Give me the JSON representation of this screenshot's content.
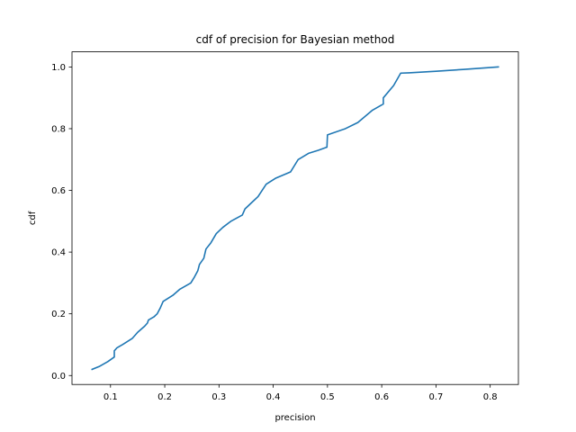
{
  "chart_data": {
    "type": "line",
    "title": "cdf of precision for Bayesian method",
    "xlabel": "precision",
    "ylabel": "cdf",
    "xlim": [
      0.029,
      0.852
    ],
    "ylim": [
      -0.029,
      1.049
    ],
    "xticks": [
      "0.1",
      "0.2",
      "0.3",
      "0.4",
      "0.5",
      "0.6",
      "0.7",
      "0.8"
    ],
    "yticks": [
      "0.0",
      "0.2",
      "0.4",
      "0.6",
      "0.8",
      "1.0"
    ],
    "grid": false,
    "series": [
      {
        "color": "#1f77b4",
        "x": [
          0.066,
          0.08,
          0.095,
          0.107,
          0.107,
          0.112,
          0.122,
          0.14,
          0.15,
          0.163,
          0.168,
          0.17,
          0.18,
          0.186,
          0.192,
          0.197,
          0.215,
          0.228,
          0.248,
          0.255,
          0.261,
          0.264,
          0.272,
          0.276,
          0.285,
          0.295,
          0.307,
          0.322,
          0.343,
          0.348,
          0.36,
          0.372,
          0.387,
          0.405,
          0.432,
          0.446,
          0.465,
          0.483,
          0.499,
          0.5,
          0.533,
          0.556,
          0.583,
          0.603,
          0.603,
          0.622,
          0.635,
          0.65,
          0.7,
          0.75,
          0.815
        ],
        "y": [
          0.02,
          0.03,
          0.045,
          0.06,
          0.08,
          0.09,
          0.1,
          0.12,
          0.14,
          0.16,
          0.17,
          0.18,
          0.19,
          0.2,
          0.22,
          0.24,
          0.26,
          0.28,
          0.3,
          0.32,
          0.34,
          0.36,
          0.38,
          0.41,
          0.43,
          0.46,
          0.48,
          0.5,
          0.52,
          0.54,
          0.56,
          0.58,
          0.62,
          0.64,
          0.66,
          0.7,
          0.72,
          0.73,
          0.74,
          0.78,
          0.8,
          0.82,
          0.86,
          0.88,
          0.9,
          0.94,
          0.98,
          0.981,
          0.986,
          0.992,
          1.0
        ]
      }
    ]
  }
}
